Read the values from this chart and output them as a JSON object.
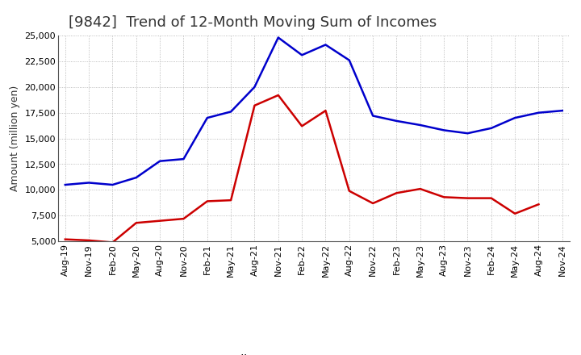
{
  "title": "[9842]  Trend of 12-Month Moving Sum of Incomes",
  "ylabel": "Amount (million yen)",
  "background_color": "#ffffff",
  "grid_color": "#aaaaaa",
  "ylim": [
    5000,
    25000
  ],
  "yticks": [
    5000,
    7500,
    10000,
    12500,
    15000,
    17500,
    20000,
    22500,
    25000
  ],
  "x_labels": [
    "Aug-19",
    "Nov-19",
    "Feb-20",
    "May-20",
    "Aug-20",
    "Nov-20",
    "Feb-21",
    "May-21",
    "Aug-21",
    "Nov-21",
    "Feb-22",
    "May-22",
    "Aug-22",
    "Nov-22",
    "Feb-23",
    "May-23",
    "Aug-23",
    "Nov-23",
    "Feb-24",
    "May-24",
    "Aug-24",
    "Nov-24"
  ],
  "ordinary_income": [
    10500,
    10700,
    10500,
    11200,
    12800,
    13000,
    17000,
    17600,
    20000,
    24800,
    23100,
    24100,
    22600,
    17200,
    16700,
    16300,
    15800,
    15500,
    16000,
    17000,
    17500,
    17700
  ],
  "net_income": [
    5200,
    5100,
    4900,
    6800,
    7000,
    7200,
    8900,
    9000,
    18200,
    19200,
    16200,
    17700,
    9900,
    8700,
    9700,
    10100,
    9300,
    9200,
    9200,
    7700,
    8600,
    null
  ],
  "ordinary_color": "#0000cc",
  "net_color": "#cc0000",
  "line_width": 1.8,
  "title_fontsize": 13,
  "title_color": "#333333",
  "ylabel_fontsize": 9,
  "legend_fontsize": 10,
  "tick_fontsize": 8
}
